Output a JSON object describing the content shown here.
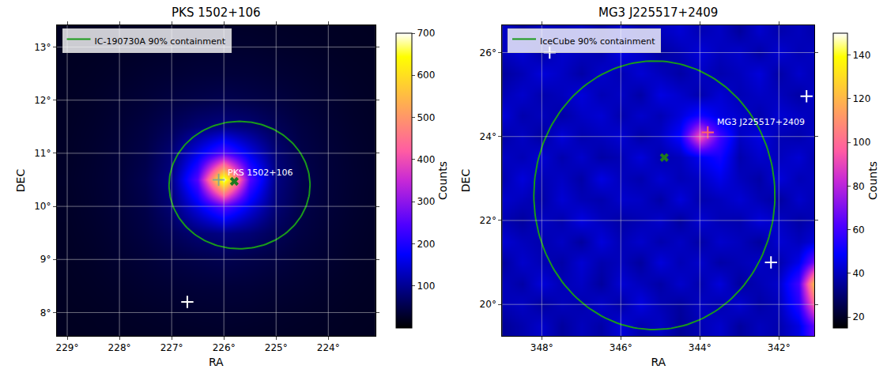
{
  "chart_data": [
    {
      "type": "heatmap",
      "title": "PKS 1502+106",
      "x_label": "RA",
      "y_label": "DEC",
      "colorbar_label": "Counts",
      "x": [
        223,
        223.5,
        224,
        224.5,
        225,
        225.5,
        226,
        226.5,
        227,
        227.5,
        228,
        228.5,
        229
      ],
      "y": [
        7.5,
        8,
        8.5,
        9,
        9.5,
        10,
        10.5,
        11,
        11.5,
        12,
        12.5,
        13,
        13.5
      ],
      "z": [
        [
          22,
          23,
          24,
          25,
          26,
          27,
          28,
          27,
          26,
          25,
          24,
          23,
          22
        ],
        [
          23,
          24,
          26,
          28,
          30,
          32,
          33,
          32,
          30,
          28,
          26,
          24,
          23
        ],
        [
          24,
          26,
          29,
          33,
          36,
          39,
          40,
          39,
          36,
          33,
          29,
          26,
          24
        ],
        [
          25,
          28,
          33,
          38,
          45,
          50,
          55,
          50,
          45,
          38,
          33,
          28,
          25
        ],
        [
          26,
          30,
          36,
          45,
          60,
          80,
          90,
          80,
          60,
          45,
          36,
          30,
          26
        ],
        [
          27,
          32,
          39,
          50,
          80,
          160,
          250,
          160,
          80,
          50,
          39,
          32,
          27
        ],
        [
          28,
          33,
          40,
          55,
          90,
          250,
          700,
          250,
          90,
          55,
          40,
          33,
          28
        ],
        [
          27,
          32,
          39,
          50,
          80,
          160,
          250,
          160,
          80,
          50,
          39,
          32,
          27
        ],
        [
          26,
          30,
          36,
          45,
          60,
          80,
          90,
          80,
          60,
          45,
          36,
          30,
          26
        ],
        [
          25,
          28,
          33,
          38,
          45,
          50,
          55,
          50,
          45,
          38,
          33,
          28,
          25
        ],
        [
          24,
          26,
          29,
          33,
          36,
          39,
          40,
          39,
          36,
          33,
          29,
          26,
          24
        ],
        [
          23,
          24,
          26,
          28,
          30,
          32,
          33,
          32,
          30,
          28,
          26,
          24,
          23
        ],
        [
          22,
          23,
          24,
          25,
          26,
          27,
          28,
          27,
          26,
          25,
          24,
          23,
          22
        ]
      ],
      "zlim": [
        0,
        700
      ],
      "zticks": [
        100,
        200,
        300,
        400,
        500,
        600,
        700
      ],
      "xlim": [
        229.2,
        223.1
      ],
      "xticks": [
        {
          "value": 229,
          "label": "229°"
        },
        {
          "value": 228,
          "label": "228°"
        },
        {
          "value": 227,
          "label": "227°"
        },
        {
          "value": 226,
          "label": "226°"
        },
        {
          "value": 225,
          "label": "225°"
        },
        {
          "value": 224,
          "label": "224°"
        }
      ],
      "ylim": [
        7.56,
        13.41
      ],
      "yticks": [
        {
          "value": 8,
          "label": "8°"
        },
        {
          "value": 9,
          "label": "9°"
        },
        {
          "value": 10,
          "label": "10°"
        },
        {
          "value": 11,
          "label": "11°"
        },
        {
          "value": 12,
          "label": "12°"
        },
        {
          "value": 13,
          "label": "13°"
        }
      ],
      "grid": true,
      "legend": "upper left",
      "ellipse": {
        "name": "IC-190730A 90% containment",
        "center": [
          225.7,
          10.4
        ],
        "radii": [
          1.35,
          1.2
        ],
        "color": "#1a9a1a"
      },
      "markers": [
        {
          "x": 226.1,
          "y": 10.5,
          "marker": "plus",
          "color": "#8aa88a"
        },
        {
          "x": 225.8,
          "y": 10.47,
          "marker": "x",
          "color": "#1f7a1f"
        },
        {
          "x": 226.7,
          "y": 8.2,
          "marker": "plus",
          "color": "#ffffff"
        }
      ],
      "annotations": [
        {
          "text": "PKS 1502+106",
          "x": 225.95,
          "y": 10.64
        }
      ]
    },
    {
      "type": "heatmap",
      "title": "MG3 J225517+2409",
      "x_label": "RA",
      "y_label": "DEC",
      "colorbar_label": "Counts",
      "x": [
        341,
        341.5,
        342,
        342.5,
        343,
        343.5,
        344,
        344.5,
        345,
        345.5,
        346,
        346.5,
        347,
        347.5,
        348,
        348.5,
        349
      ],
      "y": [
        19.5,
        20,
        20.5,
        21,
        21.5,
        22,
        22.5,
        23,
        23.5,
        24,
        24.5,
        25,
        25.5,
        26,
        26.5
      ],
      "z": [
        [
          70,
          45,
          38,
          40,
          36,
          42,
          39,
          35,
          41,
          38,
          44,
          37,
          40,
          36,
          42,
          38,
          35
        ],
        [
          110,
          55,
          40,
          37,
          43,
          38,
          41,
          36,
          39,
          45,
          37,
          42,
          38,
          40,
          36,
          41,
          39
        ],
        [
          140,
          60,
          42,
          39,
          36,
          44,
          38,
          42,
          37,
          40,
          43,
          36,
          41,
          39,
          44,
          37,
          40
        ],
        [
          75,
          46,
          38,
          41,
          39,
          37,
          42,
          39,
          44,
          36,
          40,
          38,
          43,
          37,
          39,
          42,
          36
        ],
        [
          45,
          40,
          43,
          36,
          40,
          42,
          37,
          41,
          38,
          42,
          39,
          44,
          36,
          41,
          38,
          40,
          43
        ],
        [
          40,
          37,
          41,
          44,
          38,
          39,
          43,
          36,
          42,
          39,
          37,
          40,
          45,
          38,
          41,
          36,
          39
        ],
        [
          38,
          42,
          36,
          39,
          43,
          40,
          38,
          44,
          37,
          41,
          42,
          38,
          39,
          43,
          37,
          40,
          42
        ],
        [
          41,
          39,
          44,
          37,
          40,
          46,
          41,
          39,
          43,
          38,
          40,
          45,
          37,
          41,
          39,
          44,
          38
        ],
        [
          37,
          43,
          40,
          42,
          38,
          52,
          47,
          40,
          38,
          44,
          39,
          37,
          42,
          38,
          43,
          39,
          41
        ],
        [
          42,
          38,
          39,
          45,
          41,
          60,
          95,
          50,
          41,
          37,
          43,
          40,
          38,
          44,
          36,
          41,
          37
        ],
        [
          39,
          41,
          43,
          38,
          42,
          45,
          52,
          44,
          39,
          42,
          38,
          43,
          41,
          37,
          40,
          38,
          44
        ],
        [
          43,
          37,
          40,
          41,
          39,
          43,
          38,
          42,
          45,
          37,
          41,
          39,
          44,
          40,
          38,
          42,
          39
        ],
        [
          38,
          42,
          37,
          44,
          40,
          38,
          41,
          37,
          40,
          43,
          39,
          42,
          37,
          41,
          44,
          39,
          36
        ],
        [
          41,
          39,
          43,
          37,
          42,
          40,
          44,
          39,
          36,
          41,
          45,
          38,
          40,
          42,
          37,
          43,
          40
        ],
        [
          37,
          40,
          38,
          42,
          36,
          41,
          39,
          43,
          40,
          38,
          42,
          37,
          41,
          39,
          40,
          36,
          42
        ]
      ],
      "zlim": [
        15,
        150
      ],
      "zticks": [
        20,
        40,
        60,
        80,
        100,
        120,
        140
      ],
      "xlim": [
        349.0,
        341.1
      ],
      "xticks": [
        {
          "value": 348,
          "label": "348°"
        },
        {
          "value": 346,
          "label": "346°"
        },
        {
          "value": 344,
          "label": "344°"
        },
        {
          "value": 342,
          "label": "342°"
        }
      ],
      "ylim": [
        19.25,
        26.65
      ],
      "yticks": [
        {
          "value": 20,
          "label": "20°"
        },
        {
          "value": 22,
          "label": "22°"
        },
        {
          "value": 24,
          "label": "24°"
        },
        {
          "value": 26,
          "label": "26°"
        }
      ],
      "grid": true,
      "legend": "upper left",
      "ellipse": {
        "name": "IceCube 90% containment",
        "center": [
          345.15,
          22.6
        ],
        "radii": [
          3.05,
          3.2
        ],
        "color": "#1a9a1a"
      },
      "markers": [
        {
          "x": 343.8,
          "y": 24.1,
          "marker": "plus",
          "color": "#ff6666"
        },
        {
          "x": 344.9,
          "y": 23.5,
          "marker": "x",
          "color": "#1f7a1f"
        },
        {
          "x": 347.8,
          "y": 26.0,
          "marker": "plus",
          "color": "#ffffff"
        },
        {
          "x": 341.3,
          "y": 24.96,
          "marker": "plus",
          "color": "#ffffff"
        },
        {
          "x": 342.2,
          "y": 21.0,
          "marker": "plus",
          "color": "#ffffff"
        }
      ],
      "annotations": [
        {
          "text": "MG3 J225517+2409",
          "x": 343.6,
          "y": 24.35
        }
      ]
    }
  ]
}
